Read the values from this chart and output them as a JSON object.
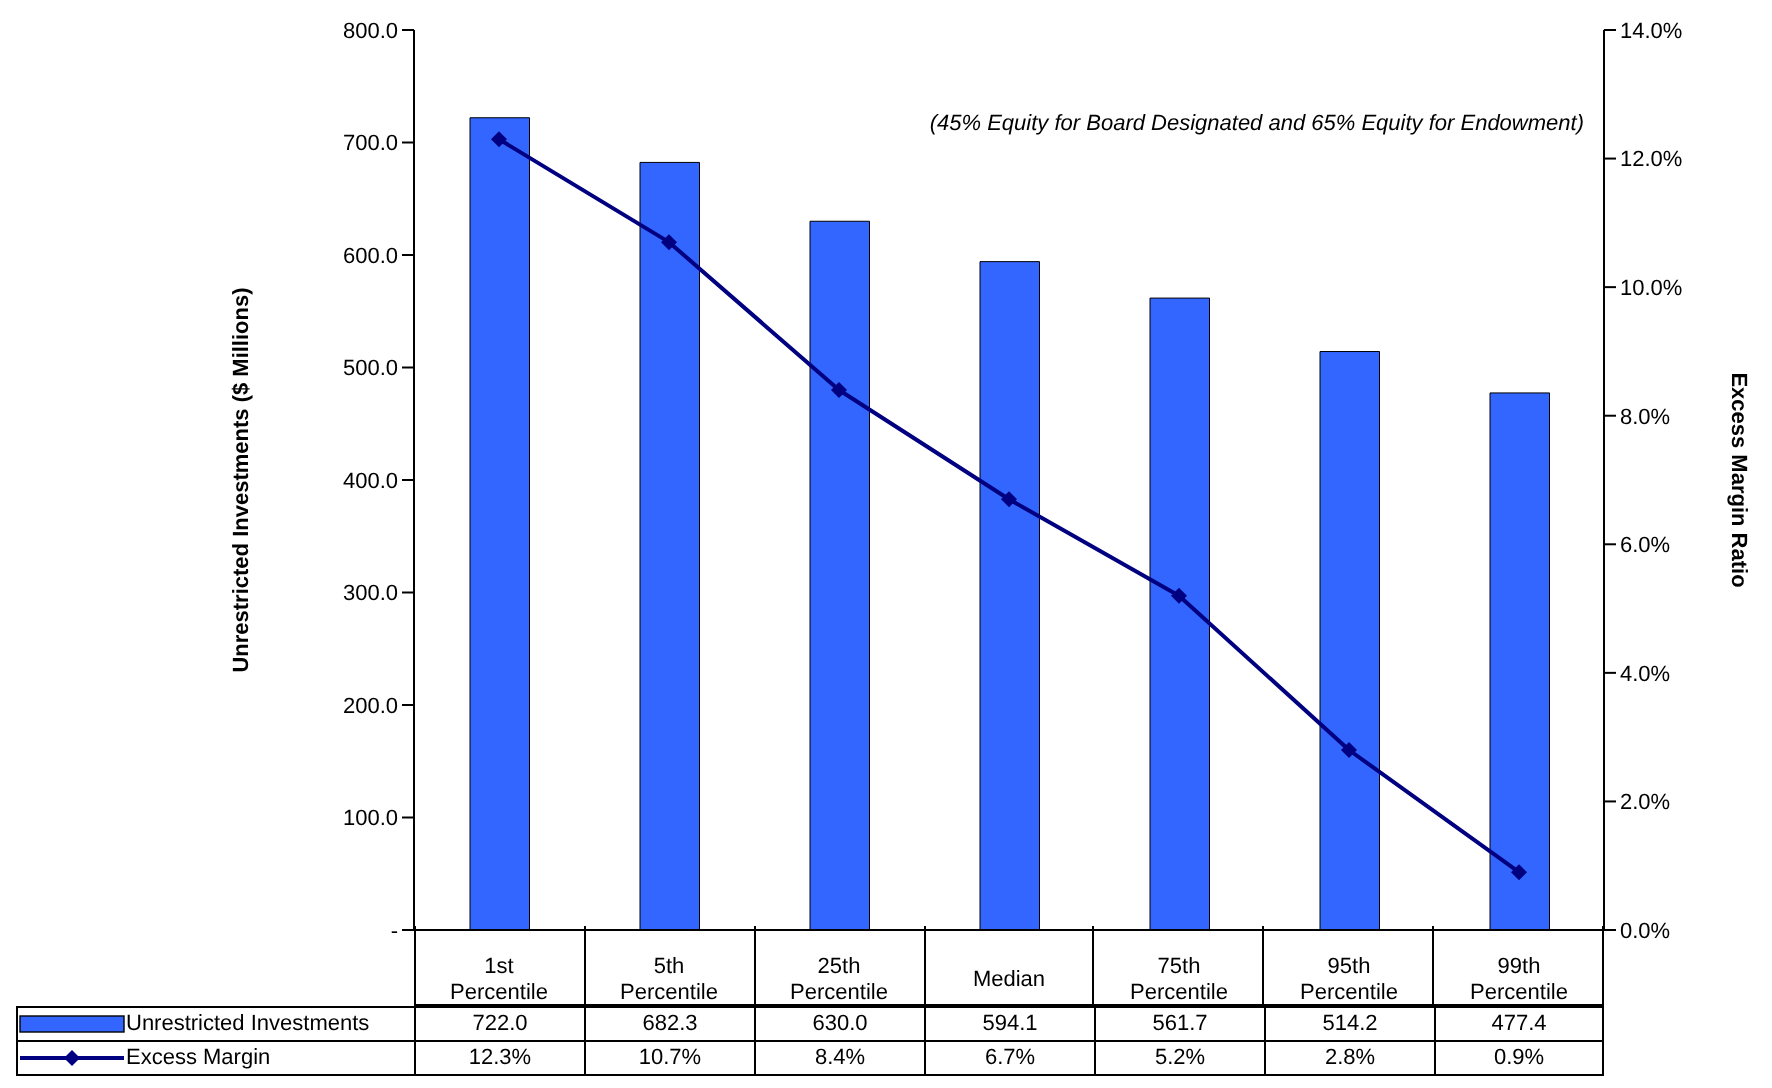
{
  "chart_data": {
    "type": "bar",
    "categories": [
      "1st Percentile",
      "5th Percentile",
      "25th Percentile",
      "Median",
      "75th Percentile",
      "95th Percentile",
      "99th Percentile"
    ],
    "series": [
      {
        "name": "Unrestricted Investments",
        "color": "#3366ff",
        "values": [
          722.0,
          682.3,
          630.0,
          594.1,
          561.7,
          514.2,
          477.4
        ],
        "value_labels": [
          "722.0",
          "682.3",
          "630.0",
          "594.1",
          "561.7",
          "514.2",
          "477.4"
        ]
      },
      {
        "name": "Excess Margin",
        "type": "line",
        "axis": "y2",
        "color": "#000080",
        "values": [
          12.3,
          10.7,
          8.4,
          6.7,
          5.2,
          2.8,
          0.9
        ],
        "value_labels": [
          "12.3%",
          "10.7%",
          "8.4%",
          "6.7%",
          "5.2%",
          "2.8%",
          "0.9%"
        ]
      }
    ],
    "ylabel": "Unrestricted Investments ($ Millions)",
    "y2label": "Excess Margin Ratio",
    "ylim": [
      0,
      800
    ],
    "yticks": [
      {
        "value": 0,
        "label": "-"
      },
      {
        "value": 100,
        "label": "100.0"
      },
      {
        "value": 200,
        "label": "200.0"
      },
      {
        "value": 300,
        "label": "300.0"
      },
      {
        "value": 400,
        "label": "400.0"
      },
      {
        "value": 500,
        "label": "500.0"
      },
      {
        "value": 600,
        "label": "600.0"
      },
      {
        "value": 700,
        "label": "700.0"
      },
      {
        "value": 800,
        "label": "800.0"
      }
    ],
    "y2lim": [
      0,
      14
    ],
    "y2ticks": [
      {
        "value": 0,
        "label": "0.0%"
      },
      {
        "value": 2,
        "label": "2.0%"
      },
      {
        "value": 4,
        "label": "4.0%"
      },
      {
        "value": 6,
        "label": "6.0%"
      },
      {
        "value": 8,
        "label": "8.0%"
      },
      {
        "value": 10,
        "label": "10.0%"
      },
      {
        "value": 12,
        "label": "12.0%"
      },
      {
        "value": 14,
        "label": "14.0%"
      }
    ],
    "annotations": [
      "(45% Equity for Board Designated and 65% Equity for Endowment)"
    ],
    "marker": "diamond",
    "line_style": "solid",
    "legend": "bottom"
  }
}
